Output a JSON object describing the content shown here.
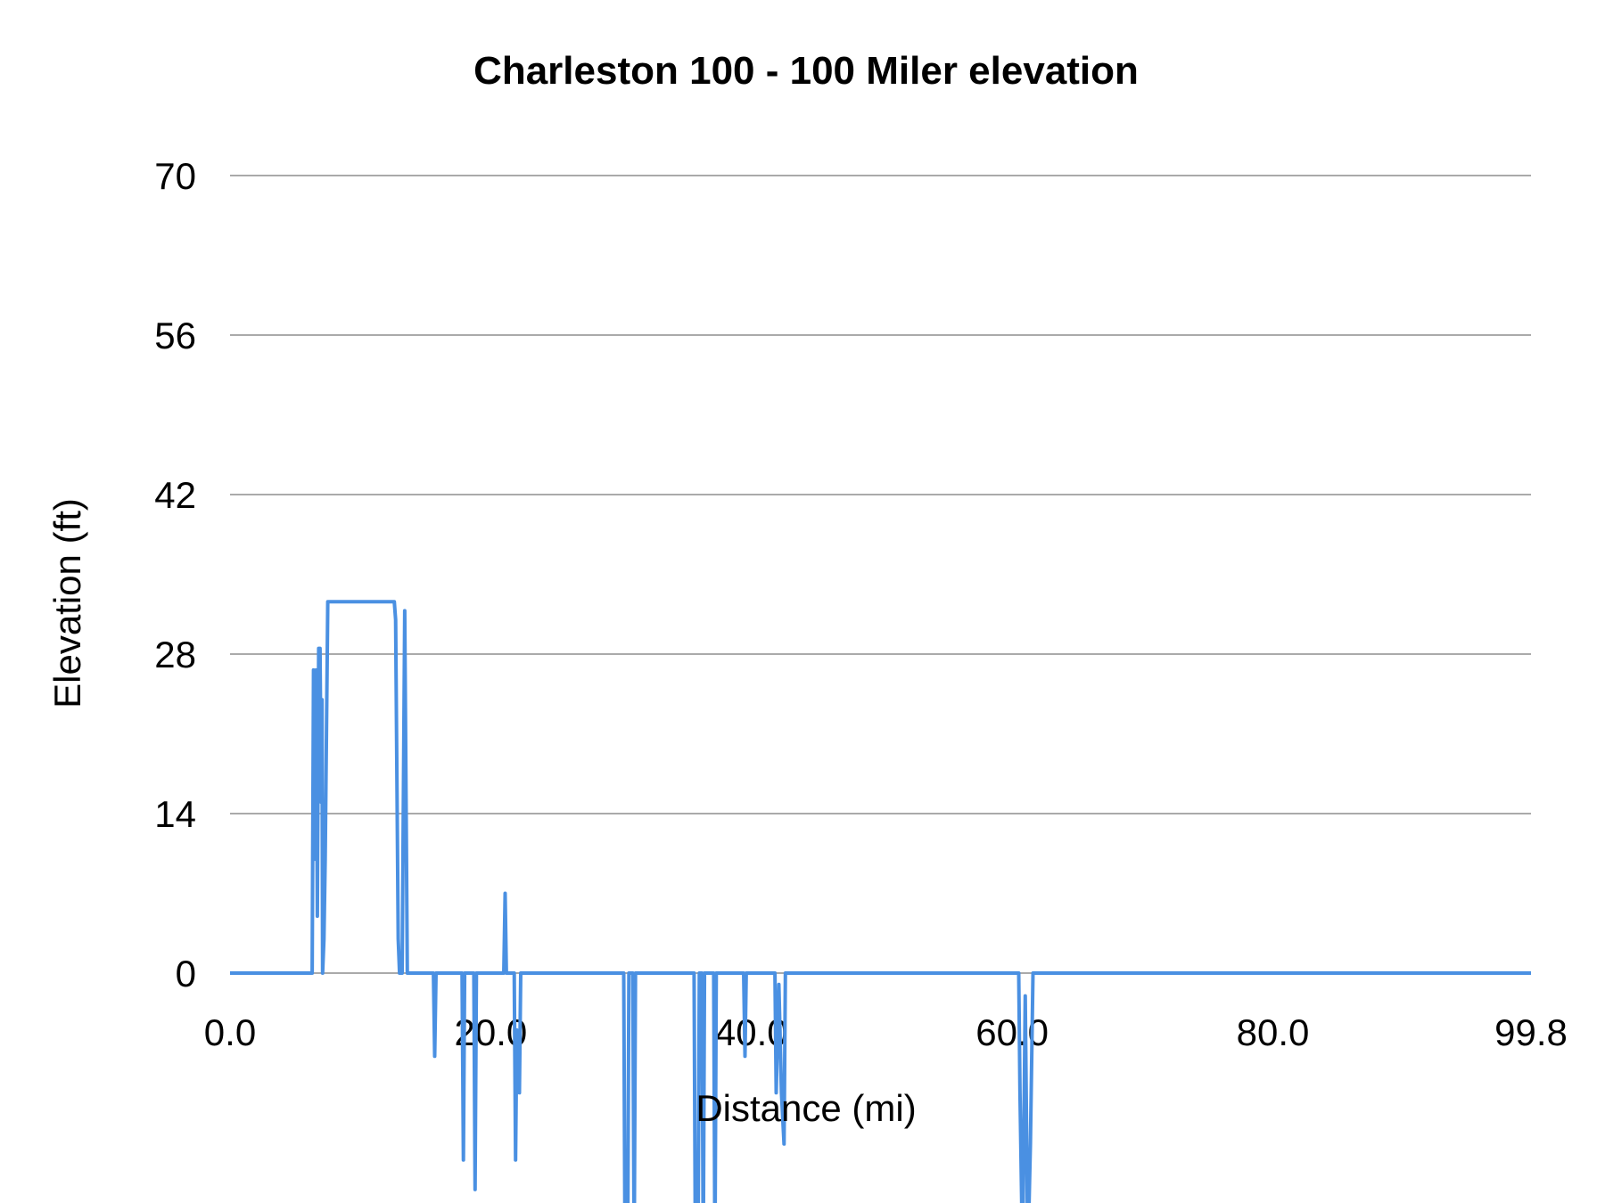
{
  "chart_data": {
    "type": "line",
    "title": "Charleston 100 - 100 Miler elevation",
    "xlabel": "Distance (mi)",
    "ylabel": "Elevation (ft)",
    "xlim": [
      0.0,
      99.8
    ],
    "ylim": [
      0,
      70
    ],
    "x_tick_labels": [
      "0.0",
      "20.0",
      "40.0",
      "60.0",
      "80.0",
      "99.8"
    ],
    "x_ticks": [
      0,
      20,
      40,
      60,
      80,
      99.8
    ],
    "y_tick_labels": [
      "0",
      "14",
      "28",
      "42",
      "56",
      "70"
    ],
    "y_ticks": [
      0,
      14,
      28,
      42,
      56,
      70
    ],
    "grid": true,
    "legend": "none",
    "colors": {
      "line": "#4a90e2",
      "grid": "#aaaaaa"
    },
    "series": [
      {
        "points": [
          [
            0.0,
            0
          ],
          [
            6.3,
            0
          ],
          [
            6.4,
            26.6
          ],
          [
            6.5,
            10
          ],
          [
            6.6,
            26.6
          ],
          [
            6.7,
            5
          ],
          [
            6.8,
            28.5
          ],
          [
            6.9,
            28.5
          ],
          [
            7.0,
            15
          ],
          [
            7.05,
            24
          ],
          [
            7.1,
            0
          ],
          [
            7.2,
            3
          ],
          [
            7.3,
            10
          ],
          [
            7.5,
            32.6
          ],
          [
            12.6,
            32.6
          ],
          [
            12.7,
            31
          ],
          [
            12.9,
            3
          ],
          [
            13.0,
            0
          ],
          [
            13.2,
            0
          ],
          [
            13.4,
            31.8
          ],
          [
            13.6,
            0
          ],
          [
            15.6,
            0
          ],
          [
            15.7,
            -7.3
          ],
          [
            15.8,
            0
          ],
          [
            17.8,
            0
          ],
          [
            17.9,
            -16.4
          ],
          [
            18.0,
            0
          ],
          [
            18.7,
            0
          ],
          [
            18.8,
            -19
          ],
          [
            18.9,
            0
          ],
          [
            21.0,
            0
          ],
          [
            21.1,
            7
          ],
          [
            21.2,
            0
          ],
          [
            21.8,
            0
          ],
          [
            21.9,
            -16.4
          ],
          [
            22.0,
            -5
          ],
          [
            22.2,
            -10.5
          ],
          [
            22.3,
            0
          ],
          [
            30.2,
            0
          ],
          [
            30.3,
            -25
          ],
          [
            30.5,
            -25
          ],
          [
            30.6,
            0
          ],
          [
            30.9,
            0
          ],
          [
            31.0,
            -25
          ],
          [
            31.1,
            0
          ],
          [
            35.6,
            0
          ],
          [
            35.7,
            -25
          ],
          [
            35.9,
            -25
          ],
          [
            36.0,
            0
          ],
          [
            36.2,
            0
          ],
          [
            36.3,
            -25
          ],
          [
            36.4,
            0
          ],
          [
            37.1,
            0
          ],
          [
            37.2,
            -25
          ],
          [
            37.3,
            0
          ],
          [
            39.4,
            0
          ],
          [
            39.5,
            -7.3
          ],
          [
            39.6,
            0
          ],
          [
            41.8,
            0
          ],
          [
            41.9,
            -10.5
          ],
          [
            42.1,
            -1
          ],
          [
            42.3,
            -10.5
          ],
          [
            42.5,
            -15
          ],
          [
            42.6,
            0
          ],
          [
            60.5,
            0
          ],
          [
            60.6,
            -10.5
          ],
          [
            60.8,
            -25
          ],
          [
            61.0,
            -2
          ],
          [
            61.2,
            -25
          ],
          [
            61.4,
            -15
          ],
          [
            61.6,
            0
          ],
          [
            99.8,
            0
          ]
        ]
      }
    ]
  }
}
